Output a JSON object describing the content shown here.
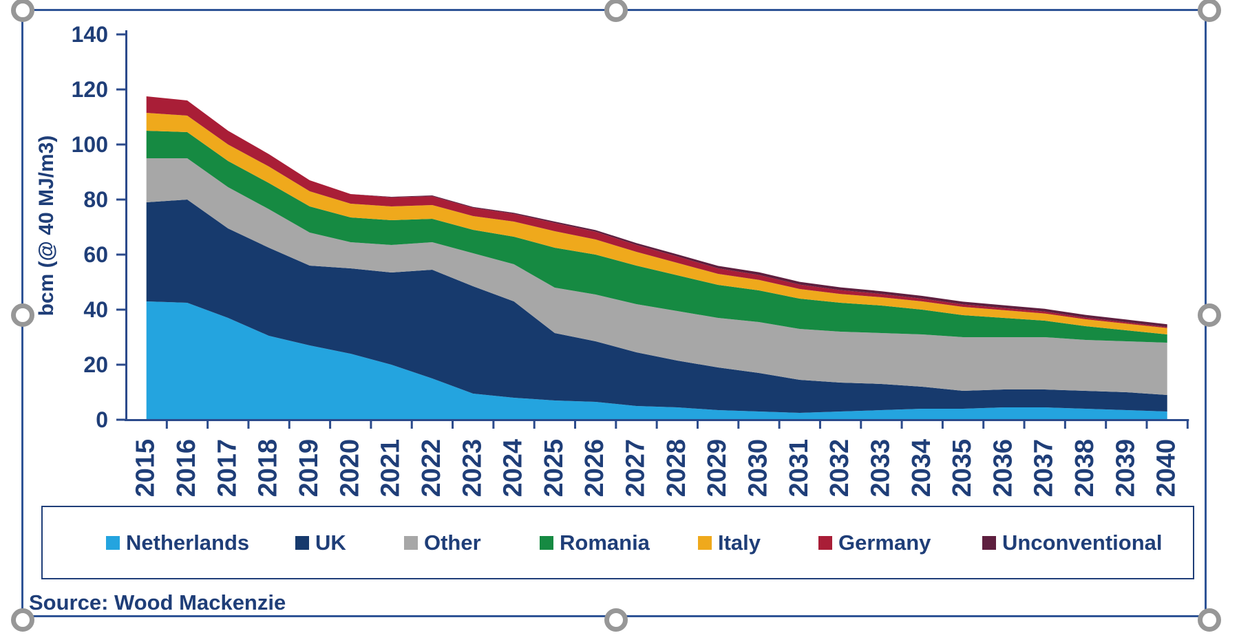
{
  "source_note": "Source: Wood Mackenzie",
  "colors": {
    "text_navy": "#1F3E78",
    "axis_navy": "#2B4A8B",
    "frame_border": "#2F5496",
    "handle_gray": "#979797",
    "background": "#FFFFFF"
  },
  "chart_data": {
    "type": "area",
    "stacked": true,
    "title": "",
    "xlabel": "",
    "ylabel": "bcm (@ 40 MJ/m3)",
    "ylim": [
      0,
      140
    ],
    "ytick_step": 20,
    "grid": false,
    "legend_position": "bottom",
    "categories": [
      "2015",
      "2016",
      "2017",
      "2018",
      "2019",
      "2020",
      "2021",
      "2022",
      "2023",
      "2024",
      "2025",
      "2026",
      "2027",
      "2028",
      "2029",
      "2030",
      "2031",
      "2032",
      "2033",
      "2034",
      "2035",
      "2036",
      "2037",
      "2038",
      "2039",
      "2040"
    ],
    "series": [
      {
        "name": "Netherlands",
        "color": "#24A4DF",
        "values": [
          43,
          42.5,
          37,
          30.5,
          27,
          24,
          20,
          15,
          9.5,
          8,
          7,
          6.5,
          5,
          4.5,
          3.5,
          3,
          2.5,
          3,
          3.5,
          4,
          4,
          4.5,
          4.5,
          4,
          3.5,
          3
        ]
      },
      {
        "name": "UK",
        "color": "#173A6D",
        "values": [
          36,
          37.5,
          32.5,
          32,
          29,
          31,
          33.5,
          39.5,
          39,
          35,
          24.5,
          22,
          19.5,
          17,
          15.5,
          14,
          12,
          10.5,
          9.5,
          8,
          6.5,
          6.5,
          6.5,
          6.5,
          6.5,
          6
        ]
      },
      {
        "name": "Other",
        "color": "#A7A7A7",
        "values": [
          16,
          15,
          15,
          14,
          12,
          9.5,
          10,
          10,
          12,
          13.5,
          16.5,
          17,
          17.5,
          18,
          18,
          18.5,
          18.5,
          18.5,
          18.5,
          19,
          19.5,
          19,
          19,
          18.5,
          18.5,
          19
        ]
      },
      {
        "name": "Romania",
        "color": "#168A42",
        "values": [
          10,
          9.5,
          9.5,
          9.5,
          9.5,
          9,
          9,
          8.5,
          8.5,
          10,
          14.5,
          14.5,
          14,
          13,
          12,
          11.5,
          11,
          10.5,
          10,
          9,
          8,
          7,
          6,
          5,
          4,
          3
        ]
      },
      {
        "name": "Italy",
        "color": "#EFA91C",
        "values": [
          6.5,
          6,
          6,
          6,
          5.5,
          5,
          5,
          5,
          5,
          5.5,
          6,
          5.5,
          5,
          4.5,
          4,
          3.8,
          3.5,
          3.2,
          3,
          3,
          3,
          2.8,
          2.6,
          2.5,
          2.4,
          2.3
        ]
      },
      {
        "name": "Germany",
        "color": "#A91E37",
        "values": [
          6,
          5.5,
          5,
          4.5,
          4,
          3.5,
          3.3,
          3.2,
          3,
          2.8,
          3,
          2.8,
          2.5,
          2.3,
          2,
          1.8,
          1.6,
          1.4,
          1.2,
          1,
          0.9,
          0.8,
          0.7,
          0.6,
          0.5,
          0.4
        ]
      },
      {
        "name": "Unconventional",
        "color": "#5E1F3F",
        "values": [
          0,
          0,
          0,
          0,
          0,
          0,
          0.2,
          0.3,
          0.3,
          0.4,
          0.5,
          0.6,
          0.7,
          0.8,
          0.9,
          1,
          1,
          1,
          1,
          1,
          1,
          1,
          1,
          1,
          1,
          1
        ]
      }
    ]
  }
}
